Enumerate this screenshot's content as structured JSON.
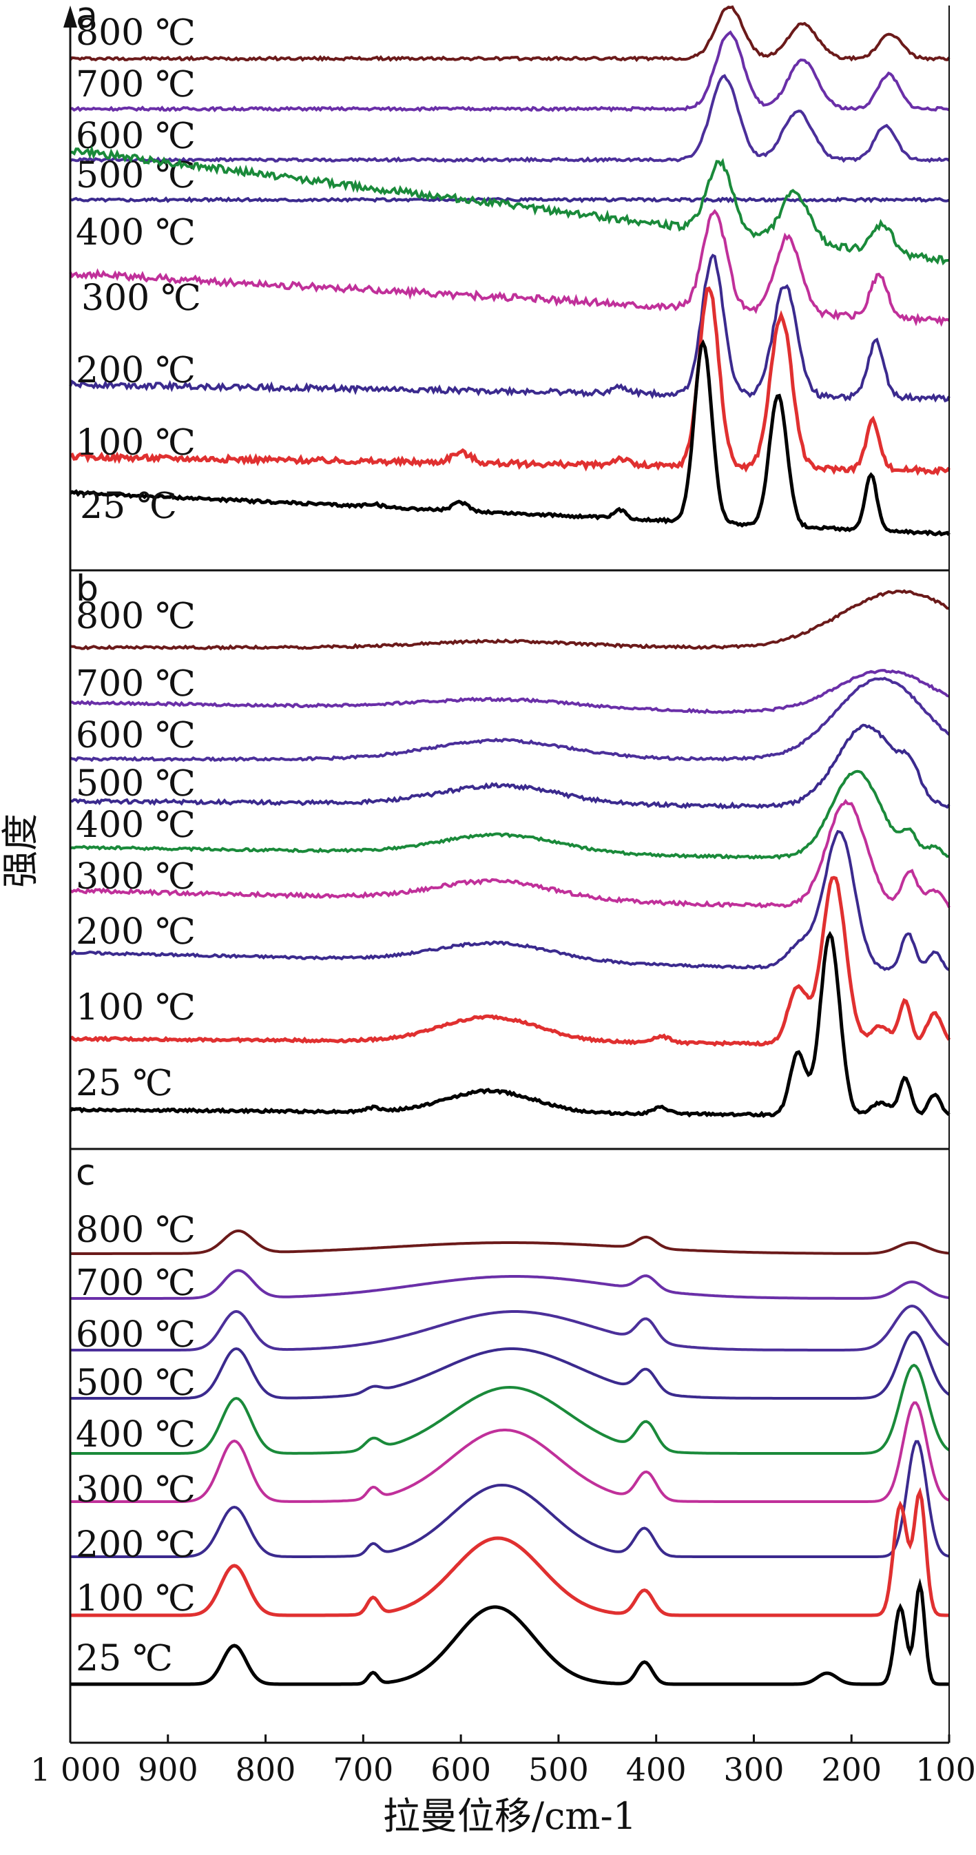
{
  "chart_data": {
    "type": "line",
    "xlabel": "拉曼位移/cm-1",
    "ylabel": "强度",
    "xlim": [
      1000,
      100
    ],
    "x_reversed": true,
    "xticks": [
      "1 000",
      "900",
      "800",
      "700",
      "600",
      "500",
      "400",
      "300",
      "200",
      "100"
    ],
    "xtick_values": [
      1000,
      900,
      800,
      700,
      600,
      500,
      400,
      300,
      200,
      100
    ],
    "temperatures": [
      "800 ℃",
      "700 ℃",
      "600 ℃",
      "500 ℃",
      "400 ℃",
      "300 ℃",
      "200 ℃",
      "100 ℃",
      "25 ℃"
    ],
    "series_colors": [
      "#6b1a1a",
      "#6a2fa8",
      "#4b2f9a",
      "#3b2a8e",
      "#1a8a3a",
      "#c0309a",
      "#3b2a8e",
      "#e03030",
      "#000000"
    ],
    "panels": [
      {
        "label": "a",
        "series": [
          {
            "label": "800 ℃",
            "baseline": [
              0.0,
              0.002
            ],
            "peaks": [
              [
                325,
                0.075,
                14
              ],
              [
                250,
                0.05,
                15
              ],
              [
                160,
                0.035,
                12
              ]
            ]
          },
          {
            "label": "700 ℃",
            "baseline": [
              0.0,
              0.002
            ],
            "peaks": [
              [
                325,
                0.11,
                14
              ],
              [
                250,
                0.07,
                15
              ],
              [
                162,
                0.05,
                11
              ]
            ]
          },
          {
            "label": "600 ℃",
            "baseline": [
              0.0,
              0.002
            ],
            "peaks": [
              [
                330,
                0.12,
                14
              ],
              [
                255,
                0.07,
                15
              ],
              [
                165,
                0.05,
                11
              ]
            ]
          },
          {
            "label": "500 ℃",
            "baseline": [
              0.0,
              0.002
            ],
            "peaks": []
          },
          {
            "label": "400 ℃",
            "baseline": [
              0.16,
              0.005
            ],
            "peaks": [
              [
                335,
                0.1,
                13
              ],
              [
                258,
                0.07,
                14
              ],
              [
                168,
                0.04,
                10
              ]
            ]
          },
          {
            "label": "300 ℃",
            "baseline": [
              0.07,
              0.005
            ],
            "peaks": [
              [
                340,
                0.14,
                12
              ],
              [
                265,
                0.11,
                13
              ],
              [
                172,
                0.06,
                9
              ]
            ]
          },
          {
            "label": "200 ℃",
            "baseline": [
              0.02,
              0.004
            ],
            "peaks": [
              [
                342,
                0.2,
                11
              ],
              [
                268,
                0.16,
                12
              ],
              [
                175,
                0.08,
                8
              ],
              [
                437,
                0.008,
                8
              ]
            ]
          },
          {
            "label": "100 ℃",
            "baseline": [
              0.02,
              0.004
            ],
            "peaks": [
              [
                346,
                0.26,
                10
              ],
              [
                272,
                0.22,
                11
              ],
              [
                178,
                0.07,
                7
              ],
              [
                600,
                0.015,
                10
              ],
              [
                437,
                0.01,
                8
              ]
            ]
          },
          {
            "label": "25 ℃",
            "baseline": [
              0.06,
              0.002
            ],
            "peaks": [
              [
                352,
                0.26,
                9
              ],
              [
                275,
                0.19,
                9
              ],
              [
                180,
                0.08,
                6
              ],
              [
                600,
                0.012,
                8
              ],
              [
                437,
                0.012,
                6
              ],
              [
                690,
                0.004,
                8
              ]
            ]
          }
        ]
      },
      {
        "label": "b",
        "series": [
          {
            "label": "800 ℃",
            "baseline": [
              0.0,
              0.002
            ],
            "peaks": [
              [
                150,
                0.09,
                60
              ],
              [
                560,
                0.01,
                80
              ]
            ]
          },
          {
            "label": "700 ℃",
            "baseline": [
              0.02,
              0.002
            ],
            "peaks": [
              [
                165,
                0.07,
                50
              ],
              [
                560,
                0.015,
                80
              ]
            ]
          },
          {
            "label": "600 ℃",
            "baseline": [
              0.0,
              0.002
            ],
            "peaks": [
              [
                170,
                0.13,
                45
              ],
              [
                560,
                0.03,
                70
              ]
            ]
          },
          {
            "label": "500 ℃",
            "baseline": [
              0.01,
              0.003
            ],
            "peaks": [
              [
                185,
                0.13,
                30
              ],
              [
                140,
                0.04,
                10
              ],
              [
                560,
                0.03,
                60
              ]
            ]
          },
          {
            "label": "400 ℃",
            "baseline": [
              0.02,
              0.002
            ],
            "peaks": [
              [
                195,
                0.14,
                25
              ],
              [
                140,
                0.035,
                8
              ],
              [
                560,
                0.03,
                60
              ],
              [
                115,
                0.02,
                8
              ]
            ]
          },
          {
            "label": "300 ℃",
            "baseline": [
              0.03,
              0.003
            ],
            "peaks": [
              [
                205,
                0.17,
                20
              ],
              [
                140,
                0.06,
                8
              ],
              [
                565,
                0.03,
                60
              ],
              [
                115,
                0.03,
                8
              ]
            ]
          },
          {
            "label": "200 ℃",
            "baseline": [
              0.03,
              0.002
            ],
            "peaks": [
              [
                212,
                0.22,
                15
              ],
              [
                250,
                0.04,
                15
              ],
              [
                142,
                0.06,
                7
              ],
              [
                565,
                0.03,
                60
              ],
              [
                115,
                0.03,
                7
              ]
            ]
          },
          {
            "label": "100 ℃",
            "baseline": [
              0.01,
              0.002
            ],
            "peaks": [
              [
                218,
                0.27,
                12
              ],
              [
                255,
                0.09,
                10
              ],
              [
                145,
                0.07,
                6
              ],
              [
                570,
                0.04,
                50
              ],
              [
                395,
                0.01,
                10
              ],
              [
                115,
                0.05,
                8
              ],
              [
                170,
                0.03,
                10
              ]
            ]
          },
          {
            "label": "25 ℃",
            "baseline": [
              0.01,
              0.002
            ],
            "peaks": [
              [
                222,
                0.29,
                10
              ],
              [
                255,
                0.1,
                8
              ],
              [
                145,
                0.06,
                6
              ],
              [
                570,
                0.035,
                45
              ],
              [
                395,
                0.01,
                8
              ],
              [
                115,
                0.035,
                6
              ],
              [
                170,
                0.02,
                10
              ],
              [
                690,
                0.006,
                8
              ]
            ]
          }
        ]
      },
      {
        "label": "c",
        "series": [
          {
            "label": "800 ℃",
            "baseline": [
              0.0,
              0.0
            ],
            "peaks": [
              [
                828,
                0.04,
                15
              ],
              [
                550,
                0.02,
                120
              ],
              [
                410,
                0.02,
                10
              ],
              [
                138,
                0.02,
                15
              ]
            ]
          },
          {
            "label": "700 ℃",
            "baseline": [
              0.0,
              0.0
            ],
            "peaks": [
              [
                828,
                0.05,
                15
              ],
              [
                545,
                0.04,
                100
              ],
              [
                410,
                0.025,
                10
              ],
              [
                138,
                0.03,
                15
              ]
            ]
          },
          {
            "label": "600 ℃",
            "baseline": [
              0.0,
              0.0
            ],
            "peaks": [
              [
                830,
                0.07,
                15
              ],
              [
                545,
                0.07,
                80
              ],
              [
                410,
                0.04,
                10
              ],
              [
                138,
                0.08,
                18
              ]
            ]
          },
          {
            "label": "500 ℃",
            "baseline": [
              0.0,
              0.0
            ],
            "peaks": [
              [
                830,
                0.09,
                15
              ],
              [
                548,
                0.09,
                70
              ],
              [
                410,
                0.04,
                10
              ],
              [
                690,
                0.01,
                8
              ],
              [
                136,
                0.12,
                15
              ]
            ]
          },
          {
            "label": "400 ℃",
            "baseline": [
              0.0,
              0.0
            ],
            "peaks": [
              [
                830,
                0.1,
                15
              ],
              [
                550,
                0.12,
                60
              ],
              [
                410,
                0.05,
                10
              ],
              [
                690,
                0.02,
                8
              ],
              [
                136,
                0.16,
                14
              ]
            ]
          },
          {
            "label": "300 ℃",
            "baseline": [
              0.0,
              0.0
            ],
            "peaks": [
              [
                832,
                0.11,
                15
              ],
              [
                555,
                0.13,
                55
              ],
              [
                410,
                0.05,
                10
              ],
              [
                690,
                0.02,
                6
              ],
              [
                135,
                0.18,
                12
              ]
            ]
          },
          {
            "label": "200 ℃",
            "baseline": [
              0.0,
              0.0
            ],
            "peaks": [
              [
                832,
                0.09,
                15
              ],
              [
                558,
                0.13,
                50
              ],
              [
                412,
                0.05,
                10
              ],
              [
                690,
                0.02,
                6
              ],
              [
                133,
                0.21,
                10
              ]
            ]
          },
          {
            "label": "100 ℃",
            "baseline": [
              0.0,
              0.0
            ],
            "peaks": [
              [
                832,
                0.09,
                14
              ],
              [
                562,
                0.14,
                45
              ],
              [
                412,
                0.045,
                9
              ],
              [
                690,
                0.03,
                6
              ],
              [
                150,
                0.2,
                7
              ],
              [
                130,
                0.22,
                6
              ]
            ]
          },
          {
            "label": "25 ℃",
            "baseline": [
              0.0,
              0.0
            ],
            "peaks": [
              [
                832,
                0.07,
                12
              ],
              [
                565,
                0.14,
                40
              ],
              [
                412,
                0.04,
                8
              ],
              [
                690,
                0.02,
                5
              ],
              [
                150,
                0.14,
                6
              ],
              [
                130,
                0.18,
                5
              ],
              [
                225,
                0.02,
                10
              ]
            ]
          }
        ]
      }
    ]
  }
}
